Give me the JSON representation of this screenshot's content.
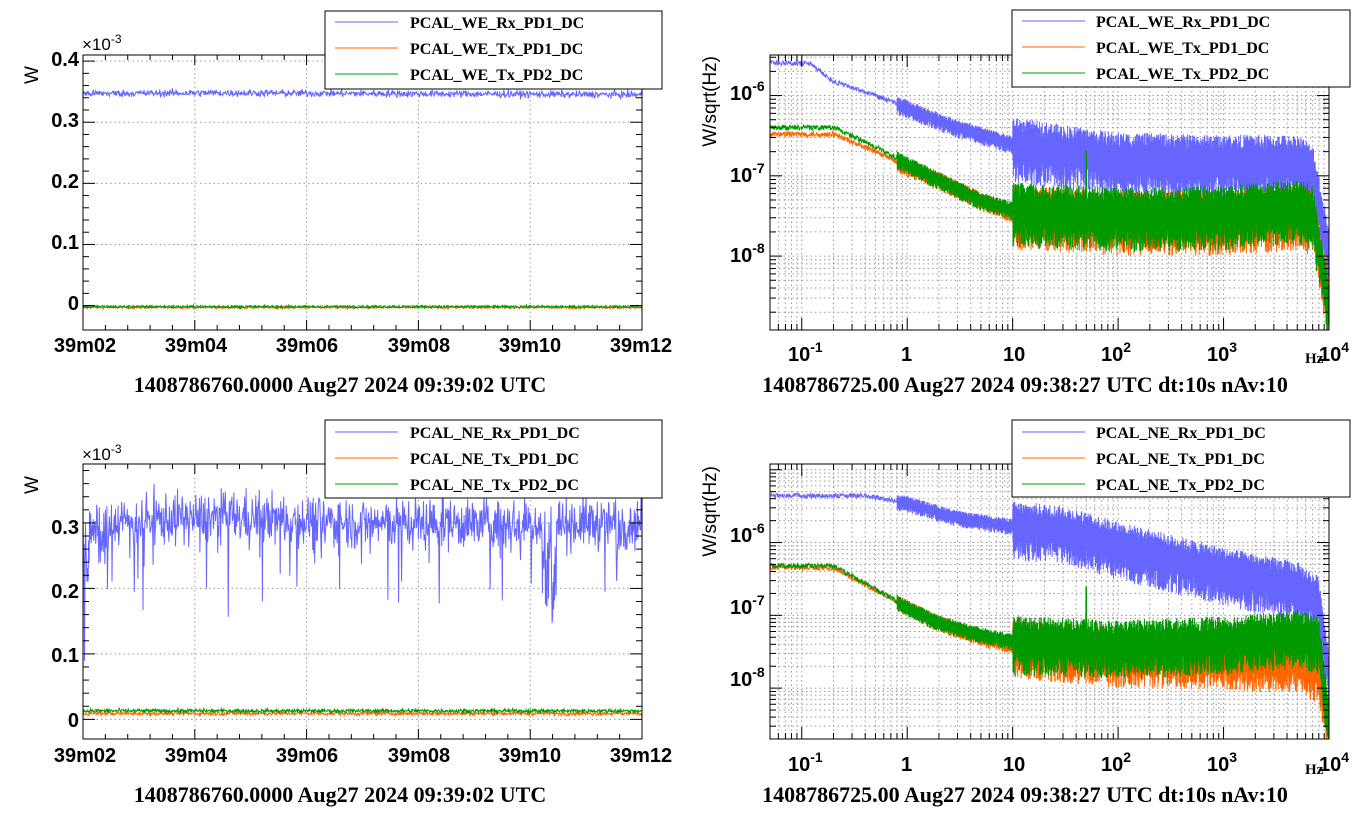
{
  "colors": {
    "rx": "#6666ff",
    "tx1": "#ff6600",
    "tx2": "#009900"
  },
  "panels": [
    {
      "id": "ts_we",
      "ylabel": "W",
      "multiplier": "×10",
      "multiplier_exp": "-3",
      "xtitle": "1408786760.0000 Aug27 2024 09:39:02 UTC",
      "xticks": [
        "39m02",
        "39m04",
        "39m06",
        "39m08",
        "39m10",
        "39m12"
      ],
      "yticks": [
        "0",
        "0.1",
        "0.2",
        "0.3",
        "0.4"
      ],
      "legend": [
        "PCAL_WE_Rx_PD1_DC",
        "PCAL_WE_Tx_PD1_DC",
        "PCAL_WE_Tx_PD2_DC"
      ]
    },
    {
      "id": "asd_we",
      "ylabel": "W/sqrt(Hz)",
      "xunit": "Hz",
      "xtitle": "1408786725.00 Aug27 2024 09:38:27 UTC dt:10s nAv:10",
      "xticks": [
        "10",
        "1",
        "10",
        "10",
        "10",
        "10"
      ],
      "xtick_exps": [
        "-1",
        "",
        "",
        "2",
        "3",
        "4"
      ],
      "yticks_exps": [
        "-8",
        "-7",
        "-6"
      ],
      "legend": [
        "PCAL_WE_Rx_PD1_DC",
        "PCAL_WE_Tx_PD1_DC",
        "PCAL_WE_Tx_PD2_DC"
      ]
    },
    {
      "id": "ts_ne",
      "ylabel": "W",
      "multiplier": "×10",
      "multiplier_exp": "-3",
      "xtitle": "1408786760.0000 Aug27 2024 09:39:02 UTC",
      "xticks": [
        "39m02",
        "39m04",
        "39m06",
        "39m08",
        "39m10",
        "39m12"
      ],
      "yticks": [
        "0",
        "0.1",
        "0.2",
        "0.3"
      ],
      "legend": [
        "PCAL_NE_Rx_PD1_DC",
        "PCAL_NE_Tx_PD1_DC",
        "PCAL_NE_Tx_PD2_DC"
      ]
    },
    {
      "id": "asd_ne",
      "ylabel": "W/sqrt(Hz)",
      "xunit": "Hz",
      "xtitle": "1408786725.00 Aug27 2024 09:38:27 UTC dt:10s nAv:10",
      "xticks": [
        "10",
        "1",
        "10",
        "10",
        "10",
        "10"
      ],
      "xtick_exps": [
        "-1",
        "",
        "",
        "2",
        "3",
        "4"
      ],
      "yticks_exps": [
        "-8",
        "-7",
        "-6"
      ],
      "legend": [
        "PCAL_NE_Rx_PD1_DC",
        "PCAL_NE_Tx_PD1_DC",
        "PCAL_NE_Tx_PD2_DC"
      ]
    }
  ],
  "chart_data": [
    {
      "type": "line",
      "xlabel": "1408786760.0000 Aug27 2024 09:39:02 UTC",
      "ylabel": "W",
      "units_multiplier": "1e-3",
      "xlim_seconds": [
        0,
        600
      ],
      "ylim": [
        -0.04,
        0.41
      ],
      "grid": true,
      "legend_position": "top-right",
      "series": [
        {
          "name": "PCAL_WE_Rx_PD1_DC",
          "x": [
            0,
            150,
            300,
            450,
            600
          ],
          "values": [
            0.347,
            0.348,
            0.347,
            0.346,
            0.345
          ],
          "noise": 0.006
        },
        {
          "name": "PCAL_WE_Tx_PD1_DC",
          "x": [
            0,
            150,
            300,
            450,
            600
          ],
          "values": [
            -0.003,
            -0.003,
            -0.003,
            -0.003,
            -0.003
          ],
          "noise": 0.002
        },
        {
          "name": "PCAL_WE_Tx_PD2_DC",
          "x": [
            0,
            150,
            300,
            450,
            600
          ],
          "values": [
            -0.002,
            -0.002,
            -0.002,
            -0.002,
            -0.002
          ],
          "noise": 0.002
        }
      ]
    },
    {
      "type": "line",
      "xlabel": "1408786725.00 Aug27 2024 09:38:27 UTC dt:10s nAv:10",
      "ylabel": "W/sqrt(Hz)",
      "xscale": "log",
      "yscale": "log",
      "xlim": [
        0.05,
        10000
      ],
      "ylim": [
        1.2e-09,
        3.2e-06
      ],
      "grid": true,
      "legend_position": "top-right",
      "series": [
        {
          "name": "PCAL_WE_Rx_PD1_DC",
          "x": [
            0.05,
            0.12,
            0.2,
            0.5,
            1,
            3,
            10,
            100,
            1000,
            5000,
            7000,
            10000
          ],
          "values": [
            2.6e-06,
            2.5e-06,
            1.5e-06,
            1e-06,
            7e-07,
            4e-07,
            2.5e-07,
            1.6e-07,
            1.5e-07,
            1.5e-07,
            1.2e-07,
            1e-08
          ]
        },
        {
          "name": "PCAL_WE_Tx_PD1_DC",
          "x": [
            0.05,
            0.2,
            0.5,
            1,
            2,
            5,
            10,
            100,
            1000,
            5000,
            7000,
            10000
          ],
          "values": [
            3.3e-07,
            3.3e-07,
            2e-07,
            1.3e-07,
            9e-08,
            5e-08,
            3.5e-08,
            3e-08,
            3e-08,
            3.5e-08,
            3e-08,
            2.5e-09
          ]
        },
        {
          "name": "PCAL_WE_Tx_PD2_DC",
          "x": [
            0.05,
            0.2,
            0.5,
            1,
            2,
            5,
            10,
            100,
            1000,
            5000,
            7000,
            10000
          ],
          "values": [
            4e-07,
            4e-07,
            2.3e-07,
            1.4e-07,
            9e-08,
            5e-08,
            3.8e-08,
            3.3e-08,
            3.5e-08,
            4.2e-08,
            3.5e-08,
            2.5e-09
          ]
        }
      ]
    },
    {
      "type": "line",
      "xlabel": "1408786760.0000 Aug27 2024 09:39:02 UTC",
      "ylabel": "W",
      "units_multiplier": "1e-3",
      "xlim_seconds": [
        0,
        600
      ],
      "ylim": [
        -0.03,
        0.39
      ],
      "grid": true,
      "legend_position": "top-right",
      "series": [
        {
          "name": "PCAL_NE_Rx_PD1_DC",
          "x": [
            0,
            150,
            300,
            450,
            600
          ],
          "values": [
            0.3,
            0.31,
            0.3,
            0.3,
            0.3
          ],
          "noise": 0.04
        },
        {
          "name": "PCAL_NE_Tx_PD1_DC",
          "x": [
            0,
            150,
            300,
            450,
            600
          ],
          "values": [
            0.009,
            0.009,
            0.009,
            0.009,
            0.009
          ],
          "noise": 0.003
        },
        {
          "name": "PCAL_NE_Tx_PD2_DC",
          "x": [
            0,
            150,
            300,
            450,
            600
          ],
          "values": [
            0.013,
            0.013,
            0.013,
            0.013,
            0.013
          ],
          "noise": 0.003
        }
      ]
    },
    {
      "type": "line",
      "xlabel": "1408786725.00 Aug27 2024 09:38:27 UTC dt:10s nAv:10",
      "ylabel": "W/sqrt(Hz)",
      "xscale": "log",
      "yscale": "log",
      "xlim": [
        0.05,
        10000
      ],
      "ylim": [
        2e-09,
        1.2e-05
      ],
      "grid": true,
      "legend_position": "top-right",
      "series": [
        {
          "name": "PCAL_NE_Rx_PD1_DC",
          "x": [
            0.05,
            0.4,
            1,
            3,
            10,
            30,
            100,
            1000,
            5000,
            8000,
            10000
          ],
          "values": [
            4.4e-06,
            4.4e-06,
            3.5e-06,
            2.2e-06,
            1.7e-06,
            1.5e-06,
            9e-07,
            4e-07,
            2.5e-07,
            1.6e-07,
            1.5e-08
          ]
        },
        {
          "name": "PCAL_NE_Tx_PD1_DC",
          "x": [
            0.05,
            0.2,
            0.5,
            1,
            2,
            5,
            10,
            100,
            1000,
            5000,
            8000,
            10000
          ],
          "values": [
            4.5e-07,
            4.5e-07,
            2.2e-07,
            1.3e-07,
            8e-08,
            5e-08,
            4e-08,
            3e-08,
            2.8e-08,
            2.5e-08,
            1.8e-08,
            3e-09
          ]
        },
        {
          "name": "PCAL_NE_Tx_PD2_DC",
          "x": [
            0.05,
            0.2,
            0.5,
            1,
            2,
            5,
            10,
            100,
            1000,
            5000,
            8000,
            10000
          ],
          "values": [
            4.8e-07,
            4.8e-07,
            2.3e-07,
            1.3e-07,
            8e-08,
            5.5e-08,
            4.5e-08,
            4e-08,
            4.5e-08,
            5.5e-08,
            4.5e-08,
            3e-09
          ]
        }
      ]
    }
  ]
}
